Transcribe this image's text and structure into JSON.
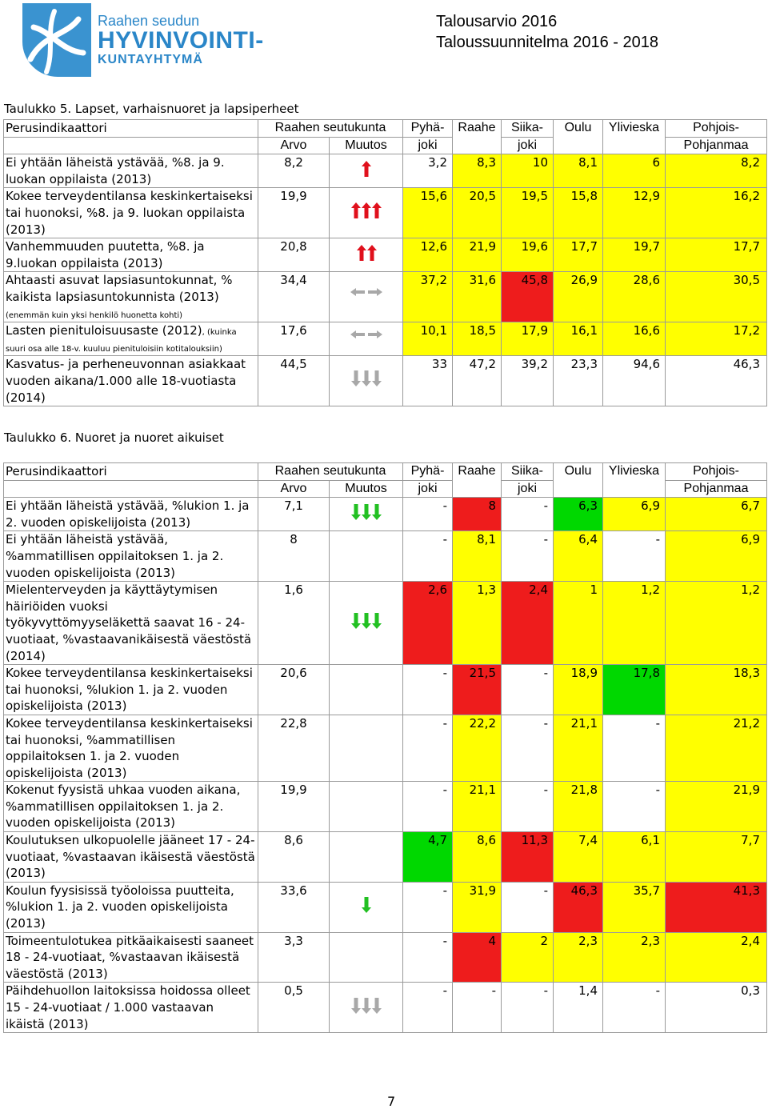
{
  "header": {
    "logo_line1": "Raahen seudun",
    "logo_line2": "HYVINVOINTI-",
    "logo_line3": "KUNTAYHTYMÄ",
    "title_line1": "Talousarvio 2016",
    "title_line2": "Taloussuunnitelma 2016 - 2018"
  },
  "table1": {
    "caption": "Taulukko 5. Lapset, varhaisnuoret ja lapsiperheet",
    "headers": {
      "indicator": "Perusindikaattori",
      "region": "Raahen seutukunta",
      "value": "Arvo",
      "change": "Muutos",
      "pyhajoki_1": "Pyhä-",
      "pyhajoki_2": "joki",
      "raahe": "Raahe",
      "siikajoki_1": "Siika-",
      "siikajoki_2": "joki",
      "oulu": "Oulu",
      "ylivieska": "Ylivieska",
      "pp_1": "Pohjois-",
      "pp_2": "Pohjanmaa"
    },
    "rows": [
      {
        "label": "Ei yhtään läheistä ystävää, %8. ja 9. luokan oppilaista (2013)",
        "note": "",
        "arvo": "8,2",
        "arrow": "up-red-1",
        "pyhajoki": "3,2",
        "raahe": "8,3",
        "siikajoki": "10",
        "oulu": "8,1",
        "ylivieska": "6",
        "pp": "8,2",
        "colors": [
          "w",
          "y",
          "y",
          "y",
          "y",
          "y"
        ]
      },
      {
        "label": "Kokee terveydentilansa keskinkertaiseksi tai huonoksi, %8. ja 9. luokan oppilaista (2013)",
        "note": "",
        "arvo": "19,9",
        "arrow": "up-red-3",
        "pyhajoki": "15,6",
        "raahe": "20,5",
        "siikajoki": "19,5",
        "oulu": "15,8",
        "ylivieska": "12,9",
        "pp": "16,2",
        "colors": [
          "y",
          "y",
          "y",
          "y",
          "y",
          "y"
        ]
      },
      {
        "label": "Vanhemmuuden puutetta, %8. ja 9.luokan oppilaista (2013)",
        "note": "",
        "arvo": "20,8",
        "arrow": "up-red-2",
        "pyhajoki": "12,6",
        "raahe": "21,9",
        "siikajoki": "19,6",
        "oulu": "17,7",
        "ylivieska": "19,7",
        "pp": "17,7",
        "colors": [
          "y",
          "y",
          "y",
          "y",
          "y",
          "y"
        ]
      },
      {
        "label": "Ahtaasti asuvat lapsiasuntokunnat, % kaikista lapsiasuntokunnista (2013)",
        "note": "(enemmän kuin yksi henkilö huonetta kohti)",
        "arvo": "34,4",
        "arrow": "side-grey",
        "pyhajoki": "37,2",
        "raahe": "31,6",
        "siikajoki": "45,8",
        "oulu": "26,9",
        "ylivieska": "28,6",
        "pp": "30,5",
        "colors": [
          "y",
          "y",
          "r",
          "y",
          "y",
          "y"
        ]
      },
      {
        "label": "Lasten pienituloisuusaste (2012)",
        "note": ", (kuinka suuri osa alle 18-v. kuuluu pienituloisiin kotitalouksiin)",
        "arvo": "17,6",
        "arrow": "side-grey",
        "pyhajoki": "10,1",
        "raahe": "18,5",
        "siikajoki": "17,9",
        "oulu": "16,1",
        "ylivieska": "16,6",
        "pp": "17,2",
        "colors": [
          "y",
          "y",
          "y",
          "y",
          "y",
          "y"
        ]
      },
      {
        "label": "Kasvatus- ja perheneuvonnan asiakkaat vuoden aikana/1.000 alle 18-vuotiasta (2014)",
        "note": "",
        "arvo": "44,5",
        "arrow": "down-grey-3",
        "pyhajoki": "33",
        "raahe": "47,2",
        "siikajoki": "39,2",
        "oulu": "23,3",
        "ylivieska": "94,6",
        "pp": "46,3",
        "colors": [
          "w",
          "w",
          "w",
          "w",
          "w",
          "w"
        ]
      }
    ]
  },
  "table2": {
    "caption": "Taulukko 6. Nuoret ja nuoret aikuiset",
    "headers": {
      "indicator": "Perusindikaattori",
      "region": "Raahen seutukunta",
      "value": "Arvo",
      "change": "Muutos",
      "pyhajoki_1": "Pyhä-",
      "pyhajoki_2": "joki",
      "raahe": "Raahe",
      "siikajoki_1": "Siika-",
      "siikajoki_2": "joki",
      "oulu": "Oulu",
      "ylivieska": "Ylivieska",
      "pp_1": "Pohjois-",
      "pp_2": "Pohjanmaa"
    },
    "rows": [
      {
        "label": "Ei yhtään läheistä ystävää, %lukion 1. ja 2. vuoden opiskelijoista (2013)",
        "arvo": "7,1",
        "arrow": "down-green-3",
        "pyhajoki": "-",
        "raahe": "8",
        "siikajoki": "-",
        "oulu": "6,3",
        "ylivieska": "6,9",
        "pp": "6,7",
        "colors": [
          "w",
          "r",
          "w",
          "g",
          "y",
          "y"
        ]
      },
      {
        "label": "Ei yhtään läheistä ystävää, %ammatillisen oppilaitoksen 1. ja 2. vuoden opiskelijoista (2013)",
        "arvo": "8",
        "arrow": "none",
        "pyhajoki": "-",
        "raahe": "8,1",
        "siikajoki": "-",
        "oulu": "6,4",
        "ylivieska": "-",
        "pp": "6,9",
        "colors": [
          "w",
          "y",
          "w",
          "y",
          "w",
          "y"
        ]
      },
      {
        "label": "Mielenterveyden ja käyttäytymisen häiriöiden vuoksi työkyvyttömyyseläkettä saavat 16 - 24-vuotiaat, %vastaavanikäisestä väestöstä (2014)",
        "arvo": "1,6",
        "arrow": "down-green-3",
        "pyhajoki": "2,6",
        "raahe": "1,3",
        "siikajoki": "2,4",
        "oulu": "1",
        "ylivieska": "1,2",
        "pp": "1,2",
        "colors": [
          "r",
          "y",
          "r",
          "y",
          "y",
          "y"
        ]
      },
      {
        "label": "Kokee terveydentilansa keskinkertaiseksi tai huonoksi, %lukion 1. ja 2. vuoden opiskelijoista (2013)",
        "arvo": "20,6",
        "arrow": "none",
        "pyhajoki": "-",
        "raahe": "21,5",
        "siikajoki": "-",
        "oulu": "18,9",
        "ylivieska": "17,8",
        "pp": "18,3",
        "colors": [
          "w",
          "r",
          "w",
          "y",
          "g",
          "y"
        ]
      },
      {
        "label": "Kokee terveydentilansa keskinkertaiseksi tai huonoksi, %ammatillisen oppilaitoksen 1. ja 2. vuoden opiskelijoista (2013)",
        "arvo": "22,8",
        "arrow": "none",
        "pyhajoki": "-",
        "raahe": "22,2",
        "siikajoki": "-",
        "oulu": "21,1",
        "ylivieska": "-",
        "pp": "21,2",
        "colors": [
          "w",
          "y",
          "w",
          "y",
          "w",
          "y"
        ]
      },
      {
        "label": "Kokenut fyysistä uhkaa vuoden aikana, %ammatillisen oppilaitoksen 1. ja 2. vuoden opiskelijoista (2013)",
        "arvo": "19,9",
        "arrow": "none",
        "pyhajoki": "-",
        "raahe": "21,1",
        "siikajoki": "-",
        "oulu": "21,8",
        "ylivieska": "-",
        "pp": "21,9",
        "colors": [
          "w",
          "y",
          "w",
          "y",
          "w",
          "y"
        ]
      },
      {
        "label": "Koulutuksen ulkopuolelle jääneet 17 - 24-vuotiaat, %vastaavan ikäisestä väestöstä (2013)",
        "arvo": "8,6",
        "arrow": "none",
        "pyhajoki": "4,7",
        "raahe": "8,6",
        "siikajoki": "11,3",
        "oulu": "7,4",
        "ylivieska": "6,1",
        "pp": "7,7",
        "colors": [
          "g",
          "y",
          "r",
          "y",
          "y",
          "y"
        ]
      },
      {
        "label": "Koulun fyysisissä työoloissa puutteita, %lukion 1. ja 2. vuoden opiskelijoista (2013)",
        "arvo": "33,6",
        "arrow": "down-green-1",
        "pyhajoki": "-",
        "raahe": "31,9",
        "siikajoki": "-",
        "oulu": "46,3",
        "ylivieska": "35,7",
        "pp": "41,3",
        "colors": [
          "w",
          "y",
          "w",
          "r",
          "y",
          "r"
        ]
      },
      {
        "label": "Toimeentulotukea pitkäaikaisesti saaneet 18 - 24-vuotiaat, %vastaavan ikäisestä väestöstä (2013)",
        "arvo": "3,3",
        "arrow": "none",
        "pyhajoki": "-",
        "raahe": "4",
        "siikajoki": "2",
        "oulu": "2,3",
        "ylivieska": "2,3",
        "pp": "2,4",
        "colors": [
          "w",
          "r",
          "y",
          "y",
          "y",
          "y"
        ]
      },
      {
        "label": "Päihdehuollon laitoksissa hoidossa olleet 15 - 24-vuotiaat / 1.000 vastaavan ikäistä (2013)",
        "arvo": "0,5",
        "arrow": "down-grey-3",
        "pyhajoki": "-",
        "raahe": "-",
        "siikajoki": "-",
        "oulu": "1,4",
        "ylivieska": "-",
        "pp": "0,3",
        "colors": [
          "w",
          "w",
          "w",
          "w",
          "w",
          "w"
        ]
      }
    ]
  },
  "page_number": "7",
  "colors": {
    "yellow": "#ffff00",
    "green": "#00d800",
    "red": "#ee1c1c",
    "arrow_red": "#e0101c",
    "arrow_green": "#22c022",
    "arrow_grey": "#a8a8a8",
    "logo_blue": "#2a86c8"
  }
}
